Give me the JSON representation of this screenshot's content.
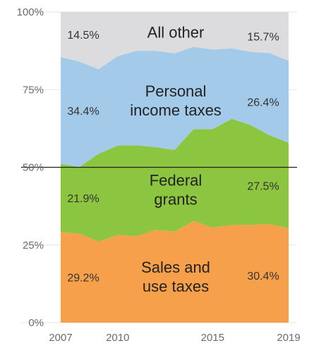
{
  "chart_data": {
    "type": "area",
    "stacked": true,
    "normalized_percent": true,
    "x": [
      2007,
      2008,
      2009,
      2010,
      2011,
      2012,
      2013,
      2014,
      2015,
      2016,
      2017,
      2018,
      2019
    ],
    "x_tick_labels": [
      "2007",
      "2010",
      "2015",
      "2019"
    ],
    "y_tick_labels": [
      "0%",
      "25%",
      "50%",
      "75%",
      "100%"
    ],
    "ylim": [
      0,
      100
    ],
    "reference_line_y": 50,
    "series": [
      {
        "name": "Sales and use taxes",
        "label_lines": [
          "Sales and",
          "use taxes"
        ],
        "color": "#f7a04b",
        "values": [
          29.2,
          28.6,
          26.1,
          28.2,
          27.8,
          29.9,
          29.3,
          32.7,
          30.6,
          31.4,
          31.5,
          31.7,
          30.4
        ],
        "start_label": "29.2%",
        "end_label": "30.4%"
      },
      {
        "name": "Federal grants",
        "label_lines": [
          "Federal",
          "grants"
        ],
        "color": "#8cc540",
        "values": [
          21.9,
          21.5,
          28.3,
          28.8,
          29.3,
          26.6,
          26.3,
          29.6,
          31.7,
          34.2,
          32.1,
          28.6,
          27.5
        ],
        "start_label": "21.9%",
        "end_label": "27.5%"
      },
      {
        "name": "Personal income taxes",
        "label_lines": [
          "Personal",
          "income taxes"
        ],
        "color": "#a4cae9",
        "values": [
          34.4,
          33.9,
          27.2,
          28.8,
          30.4,
          31.0,
          31.1,
          26.5,
          25.6,
          22.7,
          23.6,
          26.5,
          26.4
        ],
        "start_label": "34.4%",
        "end_label": "26.4%"
      },
      {
        "name": "All other",
        "label_lines": [
          "All other"
        ],
        "color": "#dcdcde",
        "values": [
          14.5,
          16.0,
          18.4,
          14.2,
          12.5,
          12.5,
          13.3,
          11.2,
          12.1,
          11.7,
          12.8,
          13.2,
          15.7
        ],
        "start_label": "14.5%",
        "end_label": "15.7%"
      }
    ]
  }
}
